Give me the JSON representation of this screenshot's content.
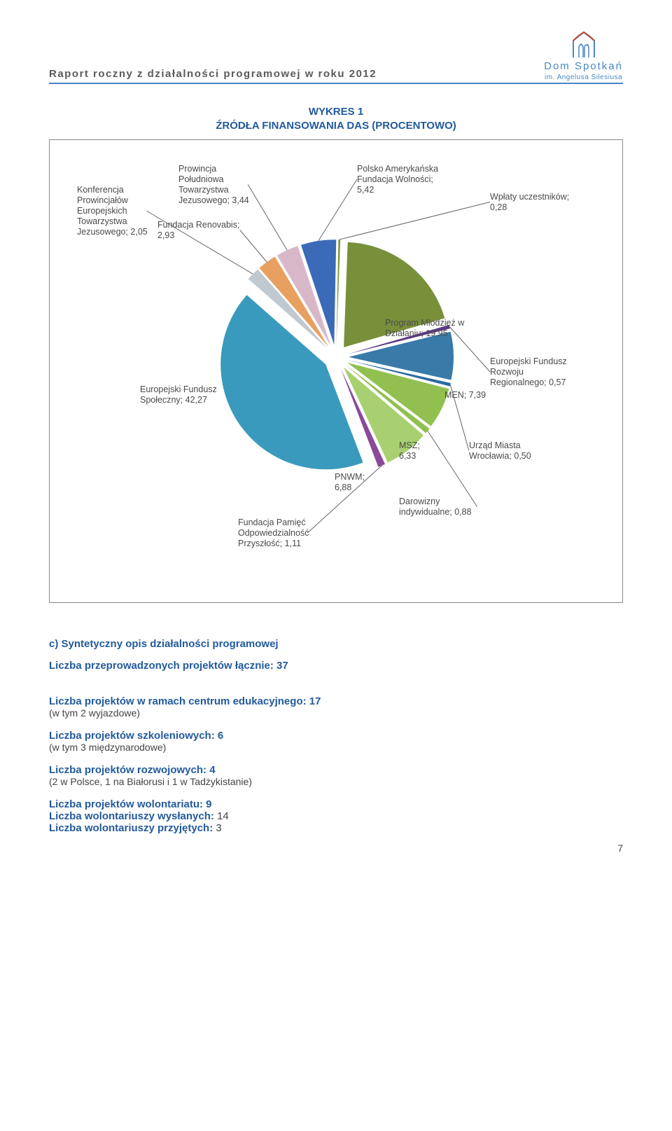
{
  "header": {
    "title": "Raport roczny z działalności programowej w roku 2012",
    "logo_main": "Dom Spotkań",
    "logo_sub": "im. Angelusa Silesiusa"
  },
  "chart": {
    "title_l1": "WYKRES 1",
    "title_l2": "ŹRÓDŁA FINANSOWANIA DAS (PROCENTOWO)",
    "background": "#ffffff",
    "border_color": "#888888",
    "slices": [
      {
        "label_l1": "Wpłaty uczestników;",
        "label_l2": "0,28",
        "value": 0.28,
        "color": "#78903a"
      },
      {
        "label_l1": "Program Młodzież w",
        "label_l2": "Działaniu; 19,95",
        "value": 19.95,
        "color": "#78903a"
      },
      {
        "label_l1": "Europejski Fundusz",
        "label_l2": "Rozwoju",
        "label_l3": "Regionalnego; 0,57",
        "value": 0.57,
        "color": "#5c3a82"
      },
      {
        "label_l1": "MEN; 7,39",
        "value": 7.39,
        "color": "#3a7aa8"
      },
      {
        "label_l1": "Urząd Miasta",
        "label_l2": "Wrocławia; 0,50",
        "value": 0.5,
        "color": "#2a6aa0"
      },
      {
        "label_l1": "MSZ;",
        "label_l2": "6,33",
        "value": 6.33,
        "color": "#92c050"
      },
      {
        "label_l1": "Darowizny",
        "label_l2": "indywidualne; 0,88",
        "value": 0.88,
        "color": "#92c050"
      },
      {
        "label_l1": "PNWM;",
        "label_l2": "6,88",
        "value": 6.88,
        "color": "#a8d070"
      },
      {
        "label_l1": "Fundacja Pamięć",
        "label_l2": "Odpowiedzialność",
        "label_l3": "Przyszłość; 1,11",
        "value": 1.11,
        "color": "#8a4a9a"
      },
      {
        "label_l1": "Europejski Fundusz",
        "label_l2": "Społeczny; 42,27",
        "value": 42.27,
        "color": "#3a9abd"
      },
      {
        "label_l1": "Konferencja",
        "label_l2": "Prowincjałów",
        "label_l3": "Europejskich",
        "label_l4": "Towarzystwa",
        "label_l5": "Jezusowego; 2,05",
        "value": 2.05,
        "color": "#c0c8d0"
      },
      {
        "label_l1": "Fundacja Renovabis;",
        "label_l2": "2,93",
        "value": 2.93,
        "color": "#e8a060"
      },
      {
        "label_l1": "Prowincja",
        "label_l2": "Południowa",
        "label_l3": "Towarzystwa",
        "label_l4": "Jezusowego; 3,44",
        "value": 3.44,
        "color": "#d8b8c8"
      },
      {
        "label_l1": "Polsko Amerykańska",
        "label_l2": "Fundacja Wolności;",
        "label_l3": "5,42",
        "value": 5.42,
        "color": "#3a6ab8"
      }
    ]
  },
  "section_c": {
    "title": "c)  Syntetyczny opis działalności programowej",
    "line1": "Liczba przeprowadzonych projektów łącznie: 37",
    "blocks": [
      {
        "head": "Liczba projektów w ramach centrum edukacyjnego: 17",
        "sub": "(w tym 2 wyjazdowe)"
      },
      {
        "head": "Liczba projektów szkoleniowych: 6",
        "sub": "(w tym 3 międzynarodowe)"
      },
      {
        "head": "Liczba projektów rozwojowych: 4",
        "sub": "(2 w Polsce, 1 na Białorusi i 1 w Tadżykistanie)"
      }
    ],
    "vol_head": "Liczba projektów wolontariatu: 9",
    "vol_sent_label": "Liczba wolontariuszy wysłanych: ",
    "vol_sent_val": "14",
    "vol_recv_label": "Liczba wolontariuszy przyjętych: ",
    "vol_recv_val": "3"
  },
  "page_number": "7"
}
